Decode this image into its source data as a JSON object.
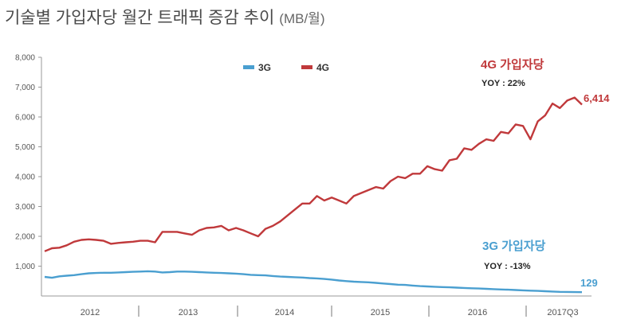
{
  "title": "기술별 가입자당 월간 트래픽 증감 추이",
  "unit": "(MB/월)",
  "chart_data": {
    "type": "line",
    "title": "기술별 가입자당 월간 트래픽 증감 추이 (MB/월)",
    "ylim": [
      0,
      8000
    ],
    "y_ticks": [
      "8,000",
      "7,000",
      "6,000",
      "5,000",
      "4,000",
      "3,000",
      "2,000",
      "1,000"
    ],
    "y_tick_values": [
      8000,
      7000,
      6000,
      5000,
      4000,
      3000,
      2000,
      1000
    ],
    "x_labels": [
      "2012",
      "2013",
      "2014",
      "2015",
      "2016",
      "2017Q3"
    ],
    "grid": false,
    "legend": {
      "placement": "top-center",
      "entries": [
        "3G",
        "4G"
      ]
    },
    "colors": {
      "3G": "#4a9fd0",
      "4G": "#c0393b"
    },
    "series": [
      {
        "name": "3G",
        "annotation": "3G 가입자당",
        "yoy": "YOY : -13%",
        "end_label": "129",
        "values": [
          640,
          610,
          660,
          680,
          700,
          730,
          760,
          770,
          780,
          780,
          790,
          800,
          810,
          820,
          830,
          820,
          790,
          800,
          820,
          820,
          810,
          800,
          790,
          780,
          770,
          760,
          750,
          730,
          710,
          700,
          690,
          670,
          650,
          640,
          630,
          620,
          600,
          590,
          570,
          550,
          520,
          500,
          480,
          470,
          460,
          440,
          420,
          400,
          380,
          370,
          350,
          330,
          320,
          310,
          300,
          290,
          280,
          270,
          260,
          250,
          240,
          230,
          220,
          210,
          200,
          190,
          180,
          170,
          160,
          150,
          140,
          135,
          130,
          129
        ]
      },
      {
        "name": "4G",
        "annotation": "4G 가입자당",
        "yoy": "YOY : 22%",
        "end_label": "6,414",
        "values": [
          1500,
          1600,
          1620,
          1700,
          1820,
          1880,
          1900,
          1880,
          1850,
          1750,
          1780,
          1800,
          1820,
          1850,
          1850,
          1800,
          2150,
          2150,
          2150,
          2100,
          2050,
          2200,
          2280,
          2300,
          2350,
          2200,
          2280,
          2200,
          2100,
          2000,
          2250,
          2350,
          2500,
          2700,
          2900,
          3100,
          3100,
          3350,
          3200,
          3300,
          3200,
          3100,
          3350,
          3450,
          3550,
          3650,
          3600,
          3850,
          4000,
          3950,
          4100,
          4100,
          4350,
          4250,
          4200,
          4550,
          4600,
          4950,
          4900,
          5100,
          5250,
          5200,
          5500,
          5450,
          5750,
          5700,
          5250,
          5850,
          6050,
          6450,
          6300,
          6550,
          6650,
          6414
        ]
      }
    ]
  }
}
